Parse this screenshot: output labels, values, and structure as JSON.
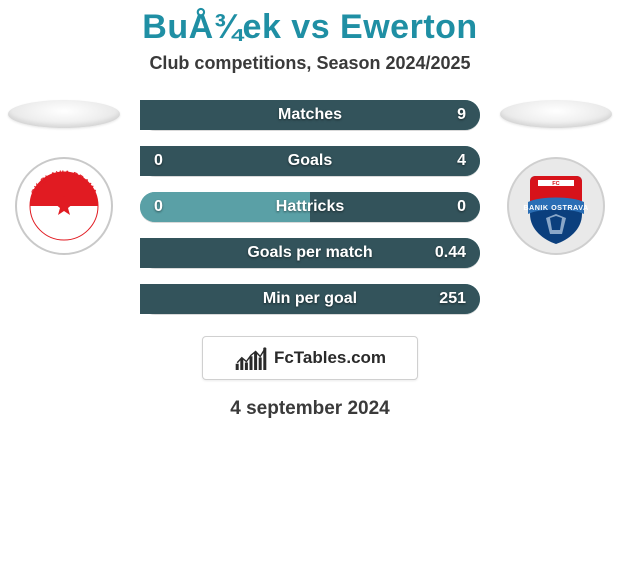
{
  "header": {
    "title": "BuÅ¾ek vs Ewerton",
    "title_fontsize": 34,
    "title_color": "#1f8fa4",
    "subtitle": "Club competitions, Season 2024/2025",
    "subtitle_fontsize": 18,
    "subtitle_color": "#3a3a3a"
  },
  "left_player": {
    "club": "SK Slavia Praha",
    "badge_colors": {
      "ring": "#ffffff",
      "ring_border": "#c9c9c9",
      "top": "#e11b22",
      "bottom": "#ffffff",
      "star": "#e11b22",
      "text": "#e11b22"
    }
  },
  "right_player": {
    "club": "FC Banik Ostrava",
    "badge_colors": {
      "shield_top": "#d7121a",
      "shield_bottom": "#0b3f7d",
      "banner": "#2a6eb5",
      "banner_text": "#ffffff",
      "accent": "#ffffff"
    }
  },
  "stats": {
    "bar_fontsize": 16,
    "label_color": "#ffffff",
    "value_color": "#ffffff",
    "left_fill_color": "#5aa0a6",
    "right_fill_color": "#33535b",
    "base_color": "#5aa0a6",
    "rows": [
      {
        "label": "Matches",
        "left": "",
        "right": "9",
        "left_pct": 0,
        "right_pct": 100
      },
      {
        "label": "Goals",
        "left": "0",
        "right": "4",
        "left_pct": 0,
        "right_pct": 100
      },
      {
        "label": "Hattricks",
        "left": "0",
        "right": "0",
        "left_pct": 50,
        "right_pct": 50
      },
      {
        "label": "Goals per match",
        "left": "",
        "right": "0.44",
        "left_pct": 0,
        "right_pct": 100
      },
      {
        "label": "Min per goal",
        "left": "",
        "right": "251",
        "left_pct": 0,
        "right_pct": 100
      }
    ]
  },
  "brand": {
    "text": "FcTables.com",
    "text_fontsize": 17,
    "text_color": "#2a2a2a",
    "chart_bars": [
      5,
      9,
      6,
      11,
      14,
      10,
      16
    ],
    "chart_color": "#2a2a2a",
    "line_color": "#2a2a2a"
  },
  "date": {
    "text": "4 september 2024",
    "fontsize": 19,
    "color": "#3a3a3a"
  },
  "layout": {
    "side_width": 120,
    "stats_width": 348
  }
}
